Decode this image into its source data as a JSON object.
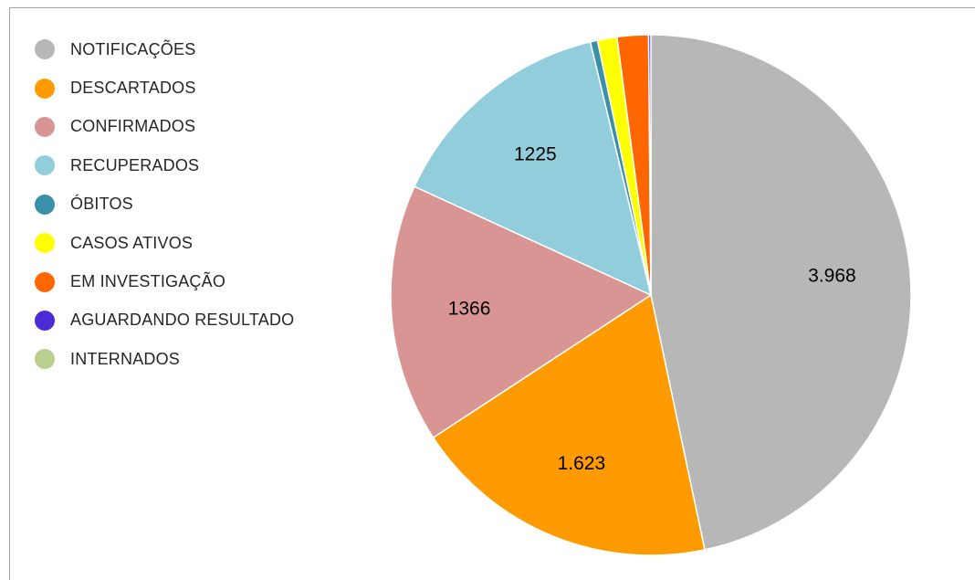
{
  "chart_data": {
    "type": "pie",
    "title": "",
    "legend_position": "left",
    "slices": [
      {
        "name": "NOTIFICAÇÕES",
        "value": 3968,
        "label": "3.968",
        "color": "#b7b7b7"
      },
      {
        "name": "DESCARTADOS",
        "value": 1623,
        "label": "1.623",
        "color": "#ff9b00"
      },
      {
        "name": "CONFIRMADOS",
        "value": 1366,
        "label": "1366",
        "color": "#d99594"
      },
      {
        "name": "RECUPERADOS",
        "value": 1225,
        "label": "1225",
        "color": "#92cddc"
      },
      {
        "name": "ÓBITOS",
        "value": 38,
        "label": "",
        "color": "#3a8fa9"
      },
      {
        "name": "CASOS ATIVOS",
        "value": 103,
        "label": "",
        "color": "#ffff00"
      },
      {
        "name": "EM INVESTIGAÇÃO",
        "value": 165,
        "label": "",
        "color": "#ff6600"
      },
      {
        "name": "AGUARDANDO RESULTADO",
        "value": 12,
        "label": "",
        "color": "#4a2bd6"
      },
      {
        "name": "INTERNADOS",
        "value": 0,
        "label": "",
        "color": "#b9d08f"
      }
    ]
  }
}
